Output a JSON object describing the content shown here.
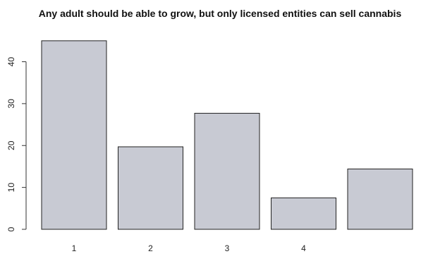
{
  "chart_data": {
    "type": "bar",
    "title": "Any adult should be able to grow, but only licensed entities can sell cannabis",
    "xlabel": "",
    "ylabel": "",
    "categories": [
      "1",
      "2",
      "3",
      "4",
      ""
    ],
    "values": [
      45,
      19.7,
      27.7,
      7.5,
      14.4
    ],
    "ylim": [
      0,
      48
    ],
    "yticks": [
      0,
      10,
      20,
      30,
      40
    ],
    "grid": false,
    "bar_color": "#c8cad3",
    "bar_edge_color": "#222222"
  }
}
